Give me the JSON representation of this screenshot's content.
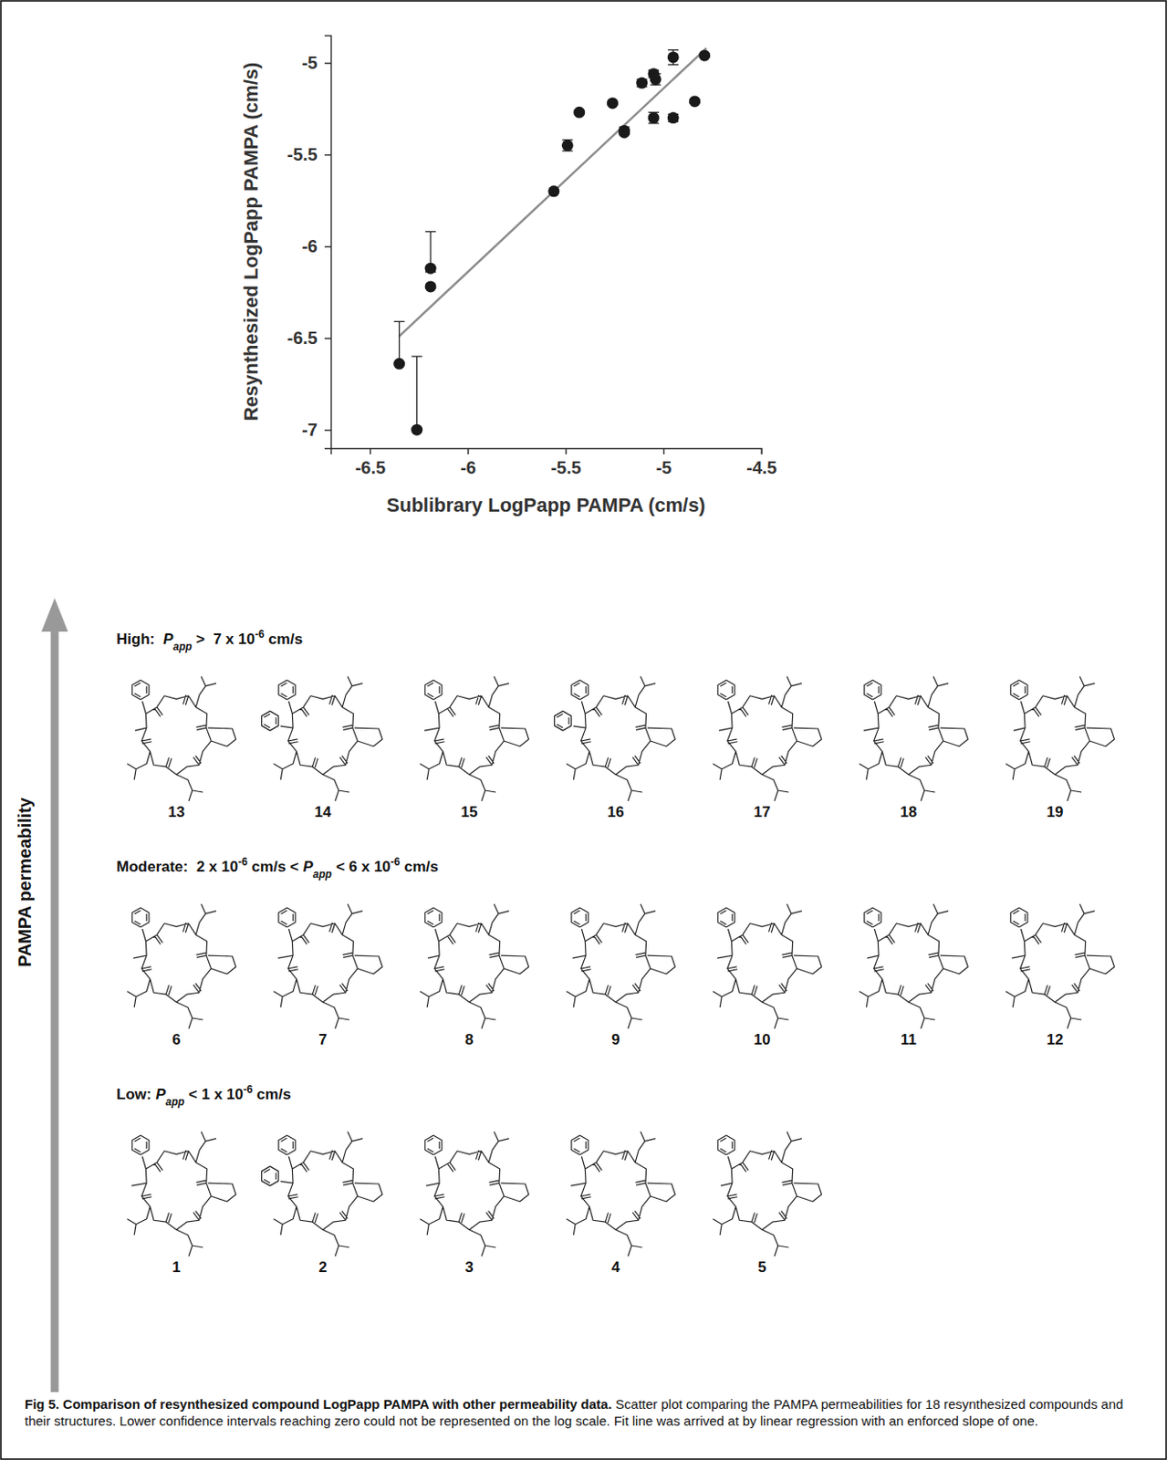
{
  "chart_data": {
    "type": "scatter",
    "x_label": "Sublibrary LogPapp PAMPA (cm/s)",
    "y_label": "Resynthesized LogPapp PAMPA (cm/s)",
    "xlim": [
      -6.7,
      -4.5
    ],
    "xticks": [
      -6.5,
      -6,
      -5.5,
      -5,
      -4.5
    ],
    "ylim": [
      -7.1,
      -4.85
    ],
    "yticks": [
      -7,
      -6.5,
      -6,
      -5.5,
      -5
    ],
    "grid": false,
    "series": [
      {
        "type": "scatter",
        "color": "#1a1a1a",
        "marker": "circle",
        "x": [
          -6.35,
          -6.26,
          -6.19,
          -6.19,
          -5.56,
          -5.49,
          -5.43,
          -5.26,
          -5.2,
          -5.2,
          -5.11,
          -5.05,
          -5.04,
          -5.05,
          -4.95,
          -4.95,
          -4.84,
          -4.79
        ],
        "values": [
          -6.64,
          -7.0,
          -6.12,
          -6.22,
          -5.7,
          -5.45,
          -5.27,
          -5.22,
          -5.37,
          -5.38,
          -5.11,
          -5.06,
          -5.09,
          -5.3,
          -4.97,
          -5.3,
          -5.21,
          -4.96
        ],
        "error_upper": [
          0.23,
          0.4,
          0.2,
          0.01,
          0.01,
          0.03,
          0.01,
          0.01,
          0.02,
          0.01,
          0.02,
          0.02,
          0.03,
          0.03,
          0.04,
          0.02,
          0.01,
          0.01
        ],
        "error_lower": [
          null,
          null,
          0.02,
          0.01,
          0.01,
          0.03,
          0.01,
          0.01,
          0.02,
          0.01,
          0.02,
          0.02,
          0.03,
          0.03,
          0.04,
          0.02,
          0.01,
          0.01
        ]
      },
      {
        "type": "line",
        "color": "#8c8c8c",
        "line_style": "solid",
        "x": [
          -6.35,
          -4.78
        ],
        "values": [
          -6.49,
          -4.92
        ]
      }
    ]
  },
  "figure": {
    "arrow_label": "PAMPA permeability",
    "tiers": [
      {
        "title_parts": [
          {
            "text": "High:  "
          },
          {
            "text": "P",
            "format": "italic"
          },
          {
            "text": "app",
            "format": "italic-sub"
          },
          {
            "text": " >  7 x 10"
          },
          {
            "text": "-6",
            "format": "sup"
          },
          {
            "text": " cm/s"
          }
        ],
        "compounds": [
          "13",
          "14",
          "15",
          "16",
          "17",
          "18",
          "19"
        ]
      },
      {
        "title_parts": [
          {
            "text": "Moderate:  2 x 10"
          },
          {
            "text": "-6",
            "format": "sup"
          },
          {
            "text": " cm/s < "
          },
          {
            "text": "P",
            "format": "italic"
          },
          {
            "text": "app",
            "format": "italic-sub"
          },
          {
            "text": " < 6 x 10"
          },
          {
            "text": "-6",
            "format": "sup"
          },
          {
            "text": " cm/s"
          }
        ],
        "compounds": [
          "6",
          "7",
          "8",
          "9",
          "10",
          "11",
          "12"
        ]
      },
      {
        "title_parts": [
          {
            "text": "Low: "
          },
          {
            "text": "P",
            "format": "italic"
          },
          {
            "text": "app",
            "format": "italic-sub"
          },
          {
            "text": " < 1 x 10"
          },
          {
            "text": "-6",
            "format": "sup"
          },
          {
            "text": " cm/s"
          }
        ],
        "compounds": [
          "1",
          "2",
          "3",
          "4",
          "5"
        ]
      }
    ],
    "caption": {
      "title": "Fig 5. Comparison of resynthesized compound LogPapp PAMPA with other permeability data.",
      "text": "Scatter plot comparing the PAMPA permeabilities for 18 resynthesized compounds and their structures. Lower confidence intervals reaching zero could not be represented on the log scale. Fit line was arrived at by linear regression with an enforced slope of one."
    }
  }
}
